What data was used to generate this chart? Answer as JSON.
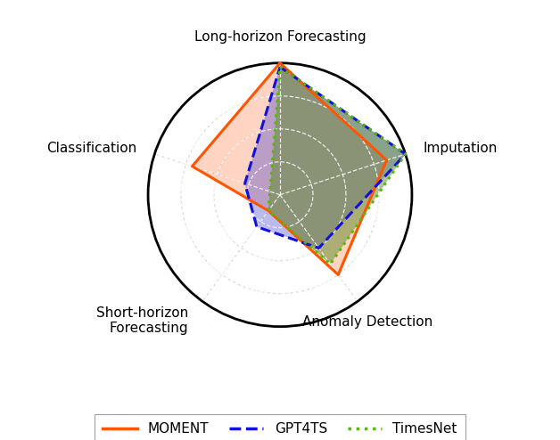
{
  "num_vars": 5,
  "angles_deg": [
    90,
    18,
    -54,
    -126,
    -198
  ],
  "category_labels": [
    "Long-horizon Forecasting",
    "Imputation",
    "Anomaly Detection",
    "Short-horizon\nForecasting",
    "Classification"
  ],
  "label_ha": [
    "center",
    "left",
    "center",
    "right",
    "right"
  ],
  "label_va": [
    "bottom",
    "center",
    "top",
    "center",
    "center"
  ],
  "label_offsets": [
    1.15,
    1.14,
    1.13,
    1.18,
    1.14
  ],
  "models": {
    "MOMENT": {
      "values": [
        1.0,
        0.85,
        0.75,
        0.15,
        0.7
      ],
      "edge_color": "#FF5500",
      "fill_color": "#FFAA8880",
      "linestyle": "-",
      "linewidth": 2.2,
      "zorder": 3
    },
    "GPT4TS": {
      "values": [
        0.97,
        1.0,
        0.5,
        0.3,
        0.28
      ],
      "edge_color": "#1111DD",
      "fill_color": "#3333CC55",
      "linestyle": "--",
      "linewidth": 2.2,
      "zorder": 4
    },
    "TimesNet": {
      "values": [
        0.97,
        1.0,
        0.65,
        0.15,
        0.08
      ],
      "edge_color": "#55BB00",
      "fill_color": "#5B8A2880",
      "linestyle": ":",
      "linewidth": 2.2,
      "zorder": 5
    }
  },
  "draw_order": [
    "MOMENT",
    "GPT4TS",
    "TimesNet"
  ],
  "grid_levels": [
    0.25,
    0.5,
    0.75,
    1.0
  ],
  "grid_color_inner": "#BBBBBB",
  "grid_color_outer_spokes": "#BBBBBB",
  "grid_color_white": "#FFFFFF",
  "grid_linestyle": "--",
  "outer_circle_color": "#000000",
  "outer_circle_linewidth": 2.0,
  "background_color": "#FFFFFF",
  "legend_labels": [
    "MOMENT",
    "GPT4TS",
    "TimesNet"
  ],
  "legend_edge_colors": [
    "#FF5500",
    "#1111DD",
    "#55BB00"
  ],
  "legend_linestyles": [
    "-",
    "--",
    ":"
  ],
  "legend_linewidth": 2.5,
  "figsize": [
    6.28,
    4.94
  ],
  "dpi": 100
}
